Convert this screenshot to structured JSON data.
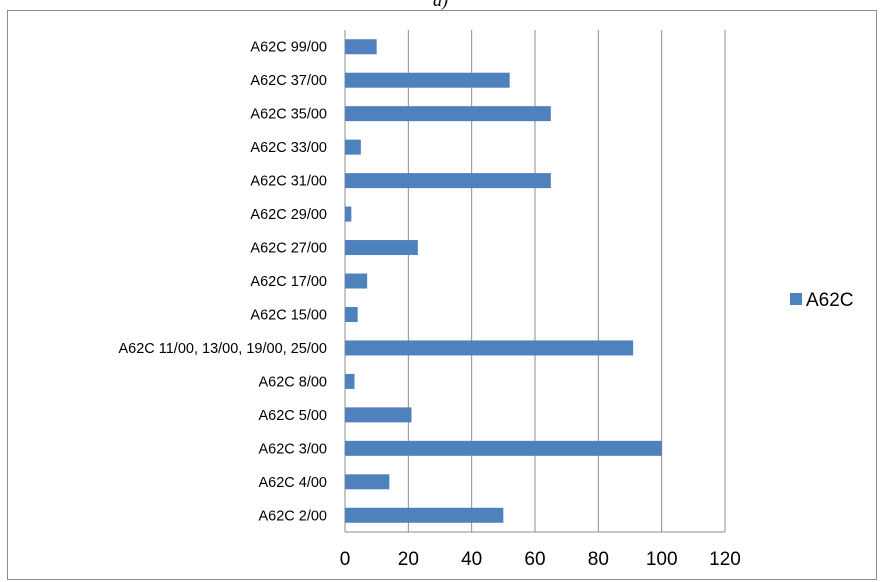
{
  "caption": "a)",
  "chart_data": {
    "type": "bar",
    "orientation": "horizontal",
    "categories": [
      "A62C 99/00",
      "A62C 37/00",
      "A62C 35/00",
      "A62C 33/00",
      "A62C 31/00",
      "A62C 29/00",
      "A62C 27/00",
      "A62C 17/00",
      "A62C 15/00",
      "A62C 11/00,  13/00,  19/00,  25/00",
      "A62C 8/00",
      "A62C 5/00",
      "A62C 3/00",
      "A62C 4/00",
      "A62C 2/00"
    ],
    "series": [
      {
        "name": "A62C",
        "color": "#4f81bd",
        "values": [
          10,
          52,
          65,
          5,
          65,
          2,
          23,
          7,
          4,
          91,
          3,
          21,
          100,
          14,
          50
        ]
      }
    ],
    "x_ticks": [
      "0",
      "20",
      "40",
      "60",
      "80",
      "100",
      "120"
    ],
    "xlim": [
      0,
      120
    ],
    "grid": "vertical",
    "legend_position": "right"
  }
}
